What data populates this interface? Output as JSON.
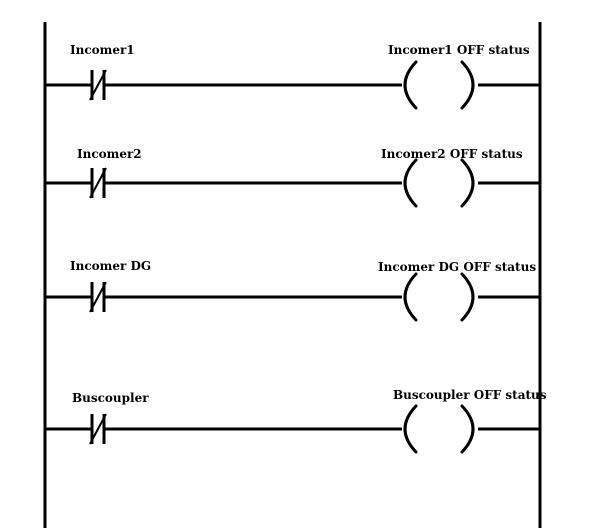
{
  "rungs": [
    {
      "contact_label": "Incomer1",
      "coil_label": "Incomer1 OFF status"
    },
    {
      "contact_label": "Incomer2",
      "coil_label": "Incomer2 OFF status"
    },
    {
      "contact_label": "Incomer DG",
      "coil_label": "Incomer DG OFF status"
    },
    {
      "contact_label": "Buscoupler",
      "coil_label": "Buscoupler OFF status"
    }
  ],
  "colors": {
    "line": "#000000",
    "background": "#ffffff"
  }
}
